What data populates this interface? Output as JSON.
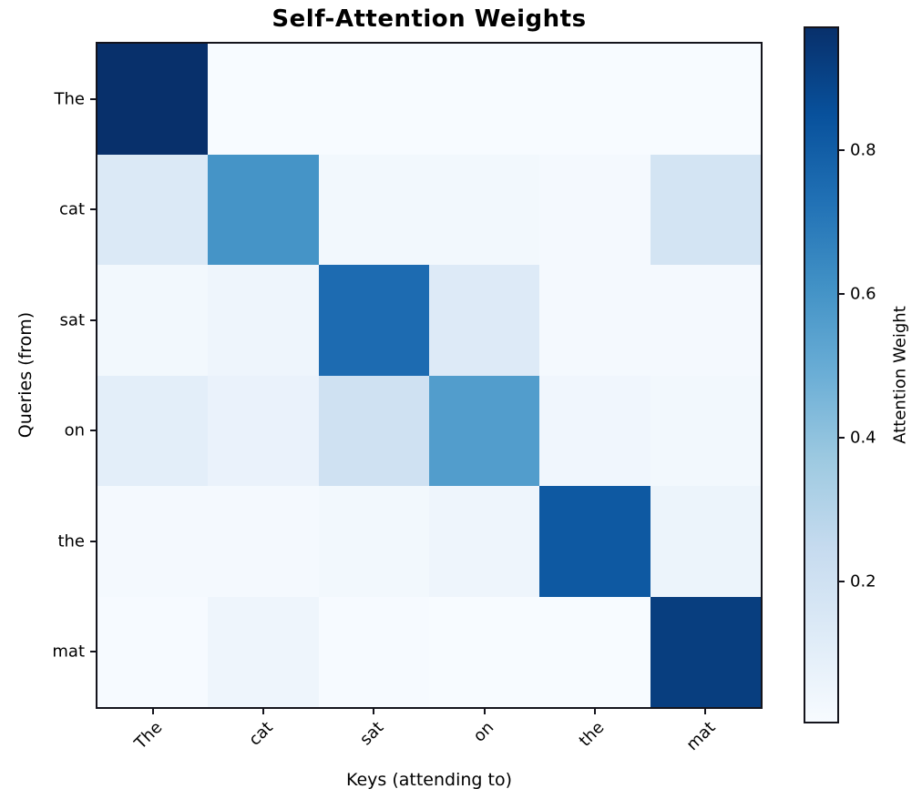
{
  "title": "Self-Attention Weights",
  "chart_data": {
    "type": "heatmap",
    "title": "Self-Attention Weights",
    "xlabel": "Keys (attending to)",
    "ylabel": "Queries (from)",
    "x_tokens": [
      "The",
      "cat",
      "sat",
      "on",
      "the",
      "mat"
    ],
    "y_tokens": [
      "The",
      "cat",
      "sat",
      "on",
      "the",
      "mat"
    ],
    "matrix": [
      [
        0.97,
        0.006,
        0.006,
        0.006,
        0.006,
        0.006
      ],
      [
        0.14,
        0.6,
        0.03,
        0.03,
        0.02,
        0.18
      ],
      [
        0.03,
        0.05,
        0.75,
        0.13,
        0.02,
        0.02
      ],
      [
        0.1,
        0.07,
        0.2,
        0.56,
        0.04,
        0.03
      ],
      [
        0.02,
        0.02,
        0.03,
        0.05,
        0.82,
        0.06
      ],
      [
        0.01,
        0.05,
        0.01,
        0.005,
        0.005,
        0.92
      ]
    ],
    "vmin": 0.005,
    "vmax": 0.97,
    "grid": false,
    "colormap": "Blues",
    "colormap_stops": [
      "#f7fbff",
      "#deebf7",
      "#c6dbef",
      "#9ecae1",
      "#6baed6",
      "#4292c6",
      "#2171b5",
      "#08519c",
      "#08306b"
    ],
    "colorbar": {
      "label": "Attention Weight",
      "position": "right",
      "ticks": [
        {
          "value": 0.2,
          "label": "0.2"
        },
        {
          "value": 0.4,
          "label": "0.4"
        },
        {
          "value": 0.6,
          "label": "0.6"
        },
        {
          "value": 0.8,
          "label": "0.8"
        }
      ]
    },
    "colors": {
      "background": "#ffffff",
      "axes_border": "#14141c",
      "text": "#000000",
      "max_cell": "#08306b",
      "min_cell": "#f7fbff"
    }
  }
}
